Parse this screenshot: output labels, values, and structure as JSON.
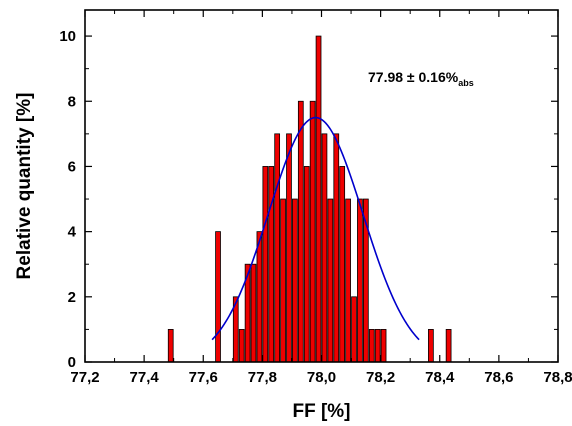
{
  "chart_data": {
    "type": "bar",
    "title": "",
    "xlabel": "FF [%]",
    "ylabel": "Relative quantity [%]",
    "xlim": [
      77.2,
      78.8
    ],
    "ylim": [
      0,
      10.8
    ],
    "x_ticks": [
      "77,2",
      "77,4",
      "77,6",
      "77,8",
      "78,0",
      "78,2",
      "78,4",
      "78,6",
      "78,8"
    ],
    "y_ticks": [
      "0",
      "2",
      "4",
      "6",
      "8",
      "10"
    ],
    "bin_width": 0.02,
    "bar_color": "#ee0000",
    "fit_color": "#0000cc",
    "bars": [
      {
        "x": 77.49,
        "y": 1
      },
      {
        "x": 77.65,
        "y": 4
      },
      {
        "x": 77.71,
        "y": 2
      },
      {
        "x": 77.73,
        "y": 1
      },
      {
        "x": 77.75,
        "y": 3
      },
      {
        "x": 77.77,
        "y": 3
      },
      {
        "x": 77.79,
        "y": 4
      },
      {
        "x": 77.81,
        "y": 6
      },
      {
        "x": 77.83,
        "y": 6
      },
      {
        "x": 77.85,
        "y": 7
      },
      {
        "x": 77.87,
        "y": 5
      },
      {
        "x": 77.89,
        "y": 7
      },
      {
        "x": 77.91,
        "y": 5
      },
      {
        "x": 77.93,
        "y": 8
      },
      {
        "x": 77.95,
        "y": 6
      },
      {
        "x": 77.97,
        "y": 8
      },
      {
        "x": 77.99,
        "y": 10
      },
      {
        "x": 78.01,
        "y": 7
      },
      {
        "x": 78.03,
        "y": 5
      },
      {
        "x": 78.05,
        "y": 7
      },
      {
        "x": 78.07,
        "y": 6
      },
      {
        "x": 78.09,
        "y": 5
      },
      {
        "x": 78.11,
        "y": 2
      },
      {
        "x": 78.13,
        "y": 5
      },
      {
        "x": 78.15,
        "y": 5
      },
      {
        "x": 78.17,
        "y": 1
      },
      {
        "x": 78.19,
        "y": 1
      },
      {
        "x": 78.21,
        "y": 1
      },
      {
        "x": 78.37,
        "y": 1
      },
      {
        "x": 78.43,
        "y": 1
      }
    ],
    "fit": {
      "type": "gaussian",
      "center": 77.98,
      "sigma": 0.16,
      "peak": 7.5,
      "x_range": [
        77.63,
        78.33
      ]
    },
    "annotation": {
      "main": "77.98 ± 0.16%",
      "subscript": "abs"
    }
  }
}
